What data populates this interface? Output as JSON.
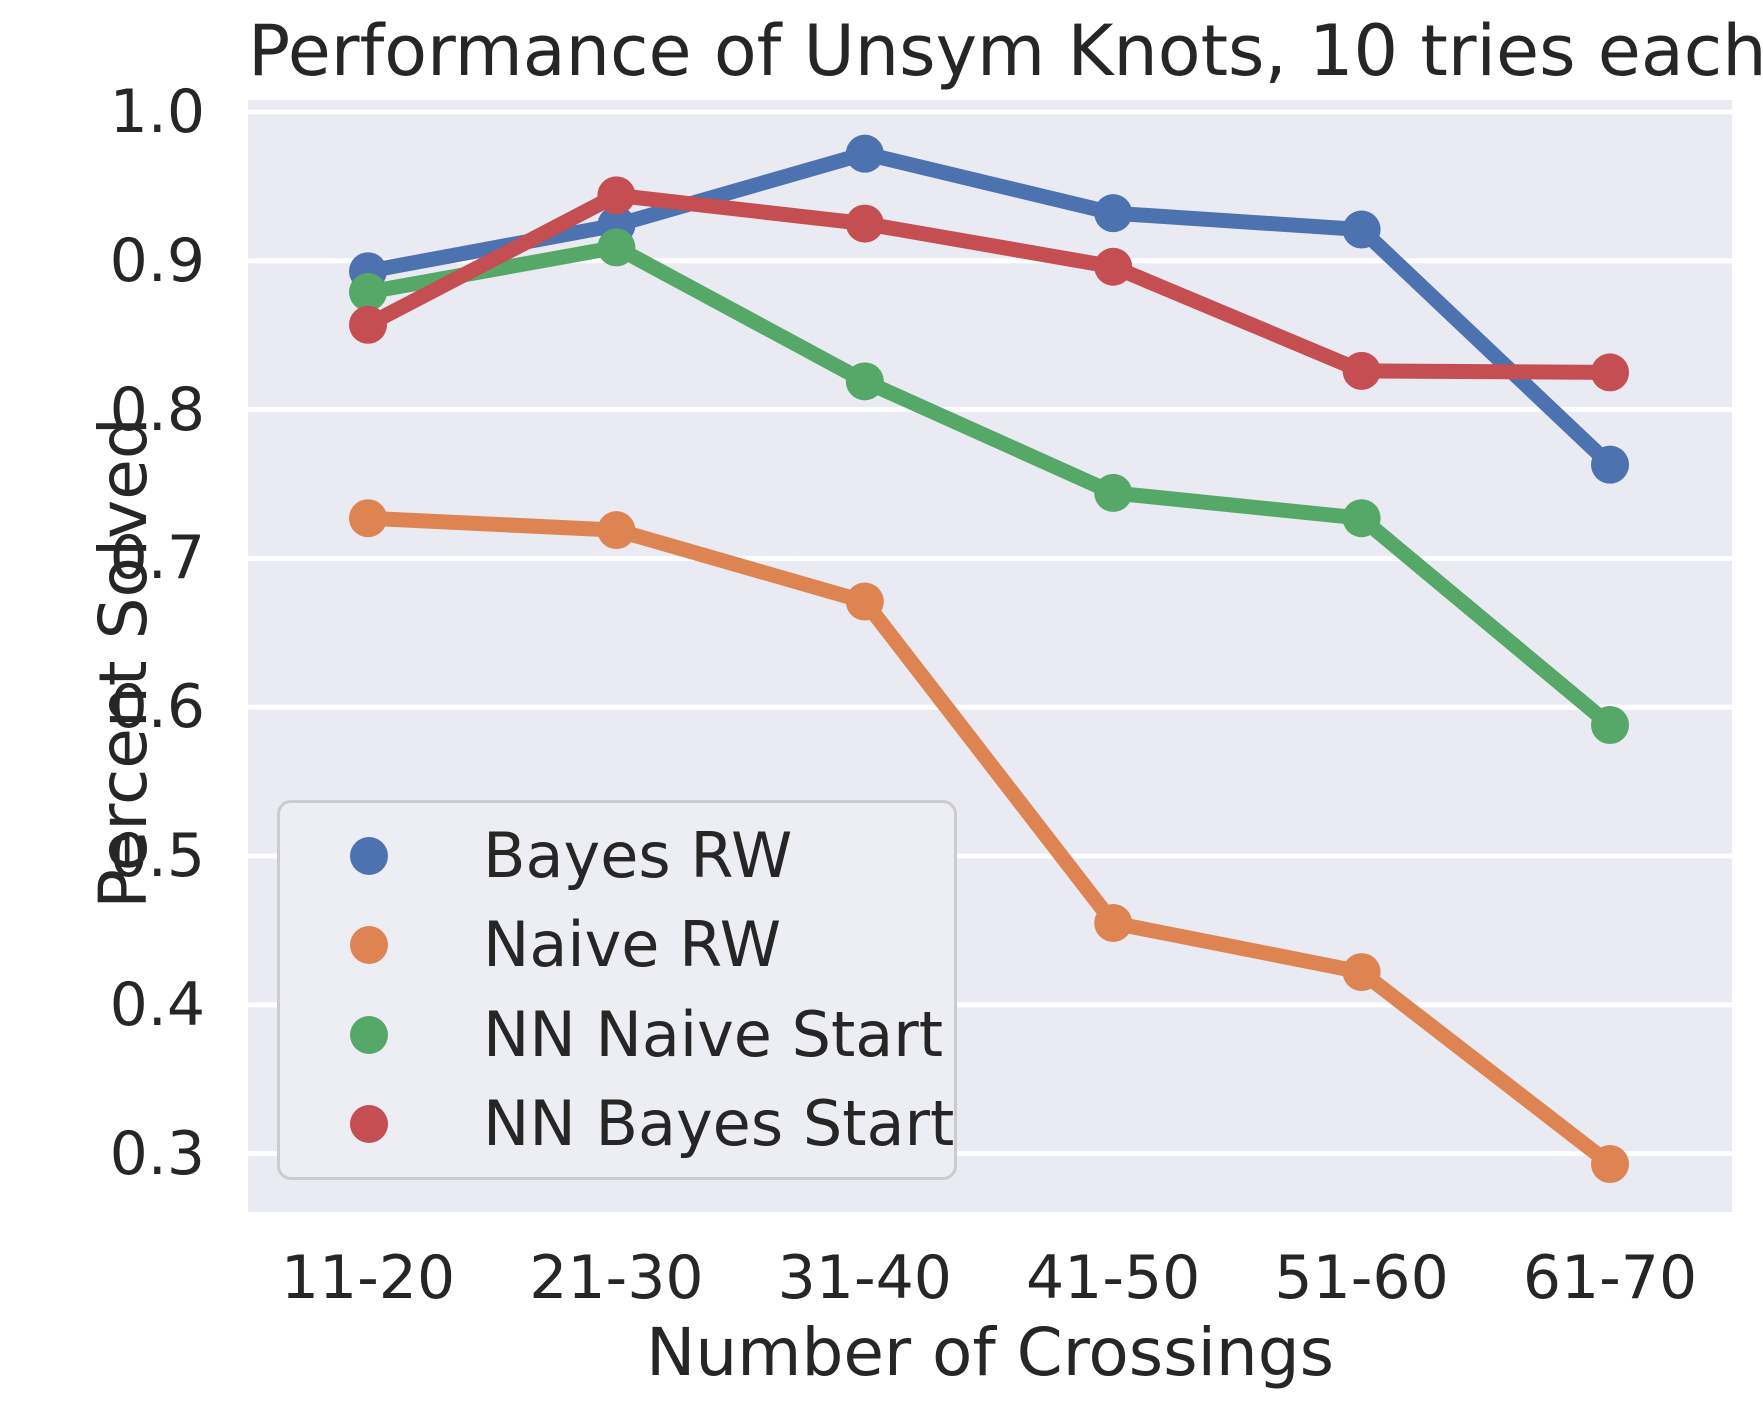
{
  "title": "Performance of Unsym Knots, 10 tries each",
  "axes": {
    "xlabel": "Number of Crossings",
    "ylabel": "Percent Solved",
    "xticklabels": [
      "11-20",
      "21-30",
      "31-40",
      "41-50",
      "51-60",
      "61-70"
    ],
    "yticklabels": [
      "1.0",
      "0.9",
      "0.8",
      "0.7",
      "0.6",
      "0.5",
      "0.4",
      "0.3"
    ]
  },
  "colors": {
    "pane_background": "#EAEAF2",
    "grid": "#FFFFFF",
    "text": "#262626",
    "legend_border": "#CCCCCC"
  },
  "chart_data": {
    "type": "line",
    "title": "Performance of Unsym Knots, 10 tries each",
    "xlabel": "Number of Crossings",
    "ylabel": "Percent Solved",
    "categories": [
      "11-20",
      "21-30",
      "31-40",
      "41-50",
      "51-60",
      "61-70"
    ],
    "yticks": [
      1.0,
      0.9,
      0.8,
      0.7,
      0.6,
      0.5,
      0.4,
      0.3
    ],
    "ylim": [
      0.261,
      1.008
    ],
    "grid": true,
    "legend_position": "lower left",
    "series": [
      {
        "name": "Bayes RW",
        "color": "#4C72B0",
        "values": [
          0.893,
          0.924,
          0.972,
          0.932,
          0.921,
          0.763
        ]
      },
      {
        "name": "Naive RW",
        "color": "#DD8452",
        "values": [
          0.727,
          0.719,
          0.671,
          0.455,
          0.422,
          0.293
        ]
      },
      {
        "name": "NN Naive Start",
        "color": "#55A868",
        "values": [
          0.879,
          0.909,
          0.819,
          0.744,
          0.727,
          0.588
        ]
      },
      {
        "name": "NN Bayes Start",
        "color": "#C44E52",
        "values": [
          0.857,
          0.944,
          0.925,
          0.896,
          0.826,
          0.825
        ]
      }
    ]
  }
}
